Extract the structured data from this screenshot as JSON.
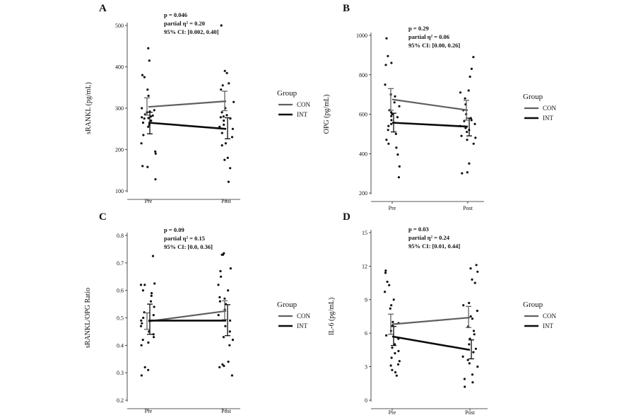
{
  "chart_data": [
    {
      "panel": "A",
      "type": "line",
      "ylabel": "sRANKL (pg/mL)",
      "ylim": [
        100,
        500
      ],
      "yticks": [
        100,
        200,
        300,
        400,
        500
      ],
      "categories": [
        "Pre",
        "Post"
      ],
      "annotation": [
        "p = 0.046",
        "partial η² = 0.20",
        "95% CI: [0.002, 0.40]"
      ],
      "legend": {
        "title": "Group",
        "items": [
          "CON",
          "INT"
        ]
      },
      "series": [
        {
          "name": "CON",
          "color": "#606060",
          "means": [
            303,
            317
          ],
          "ci_low": [
            283,
            294
          ],
          "ci_high": [
            325,
            341
          ]
        },
        {
          "name": "INT",
          "color": "#0a0a0a",
          "means": [
            265,
            250
          ],
          "ci_low": [
            238,
            226
          ],
          "ci_high": [
            290,
            277
          ]
        }
      ],
      "points": {
        "Pre": [
          445,
          415,
          380,
          375,
          345,
          330,
          300,
          295,
          292,
          290,
          285,
          282,
          280,
          278,
          276,
          275,
          270,
          265,
          260,
          255,
          235,
          215,
          195,
          190,
          160,
          158,
          128
        ],
        "Post": [
          500,
          390,
          385,
          360,
          355,
          345,
          315,
          300,
          290,
          283,
          280,
          278,
          275,
          270,
          260,
          255,
          250,
          240,
          230,
          215,
          210,
          180,
          175,
          155,
          122
        ]
      }
    },
    {
      "panel": "B",
      "type": "line",
      "ylabel": "OPG (pg/mL)",
      "ylim": [
        200,
        1000
      ],
      "yticks": [
        200,
        400,
        600,
        800,
        1000
      ],
      "categories": [
        "Pre",
        "Post"
      ],
      "annotation": [
        "p = 0.29",
        "partial η² = 0.06",
        "95% CI: [0.00, 0.26]"
      ],
      "legend": {
        "title": "Group",
        "items": [
          "CON",
          "INT"
        ]
      },
      "series": [
        {
          "name": "CON",
          "color": "#606060",
          "means": [
            675,
            620
          ],
          "ci_low": [
            620,
            570
          ],
          "ci_high": [
            730,
            670
          ]
        },
        {
          "name": "INT",
          "color": "#0a0a0a",
          "means": [
            557,
            537
          ],
          "ci_low": [
            510,
            490
          ],
          "ci_high": [
            605,
            580
          ]
        }
      ],
      "points": {
        "Pre": [
          985,
          895,
          860,
          850,
          750,
          700,
          690,
          660,
          640,
          620,
          610,
          600,
          590,
          585,
          570,
          550,
          540,
          520,
          500,
          470,
          450,
          430,
          395,
          335,
          280
        ],
        "Post": [
          890,
          830,
          790,
          720,
          710,
          680,
          650,
          620,
          600,
          580,
          570,
          565,
          550,
          540,
          530,
          520,
          510,
          490,
          480,
          470,
          450,
          350,
          305,
          300
        ]
      }
    },
    {
      "panel": "C",
      "type": "line",
      "ylabel": "sRANKL/OPG Ratio",
      "ylim": [
        0.2,
        0.8
      ],
      "yticks": [
        0.2,
        0.3,
        0.4,
        0.5,
        0.6,
        0.7,
        0.8
      ],
      "categories": [
        "Pre",
        "Post"
      ],
      "annotation": [
        "p = 0.09",
        "partial η² = 0.15",
        "95% CI: [0.0, 0.36]"
      ],
      "legend": {
        "title": "Group",
        "items": [
          "CON",
          "INT"
        ]
      },
      "series": [
        {
          "name": "CON",
          "color": "#606060",
          "means": [
            0.487,
            0.525
          ],
          "ci_low": [
            0.458,
            0.493
          ],
          "ci_high": [
            0.518,
            0.562
          ]
        },
        {
          "name": "INT",
          "color": "#0a0a0a",
          "means": [
            0.49,
            0.49
          ],
          "ci_low": [
            0.44,
            0.435
          ],
          "ci_high": [
            0.55,
            0.548
          ]
        }
      ],
      "points": {
        "Pre": [
          0.725,
          0.625,
          0.62,
          0.62,
          0.6,
          0.59,
          0.58,
          0.56,
          0.54,
          0.52,
          0.51,
          0.5,
          0.49,
          0.48,
          0.47,
          0.45,
          0.44,
          0.43,
          0.42,
          0.41,
          0.4,
          0.32,
          0.31,
          0.29
        ],
        "Post": [
          0.735,
          0.73,
          0.73,
          0.68,
          0.67,
          0.65,
          0.62,
          0.6,
          0.575,
          0.57,
          0.56,
          0.55,
          0.53,
          0.51,
          0.49,
          0.47,
          0.45,
          0.43,
          0.42,
          0.4,
          0.34,
          0.33,
          0.325,
          0.32,
          0.29
        ]
      }
    },
    {
      "panel": "D",
      "type": "line",
      "ylabel": "IL-6 (pg/mL)",
      "ylim": [
        0,
        15
      ],
      "yticks": [
        0,
        3,
        6,
        9,
        12,
        15
      ],
      "categories": [
        "Pre",
        "Post"
      ],
      "annotation": [
        "p = 0.03",
        "partial η² = 0.24",
        "95% CI: [0.01, 0.44]"
      ],
      "legend": {
        "title": "Group",
        "items": [
          "CON",
          "INT"
        ]
      },
      "series": [
        {
          "name": "CON",
          "color": "#606060",
          "means": [
            6.8,
            7.4
          ],
          "ci_low": [
            5.9,
            6.5
          ],
          "ci_high": [
            7.7,
            8.4
          ]
        },
        {
          "name": "INT",
          "color": "#0a0a0a",
          "means": [
            5.7,
            4.5
          ],
          "ci_low": [
            4.9,
            3.7
          ],
          "ci_high": [
            6.6,
            5.4
          ]
        }
      ],
      "points": {
        "Pre": [
          11.6,
          11.4,
          10.6,
          10.3,
          9.7,
          9.0,
          8.5,
          8.2,
          7.0,
          6.9,
          6.7,
          6.2,
          5.8,
          5.5,
          5.0,
          4.7,
          4.4,
          4.2,
          3.8,
          3.5,
          3.2,
          3.1,
          2.7,
          2.5,
          2.2
        ],
        "Post": [
          12.1,
          11.8,
          11.5,
          10.8,
          10.5,
          8.7,
          8.5,
          8.0,
          7.5,
          7.3,
          6.6,
          6.2,
          5.9,
          5.5,
          5.0,
          4.6,
          4.3,
          3.9,
          3.6,
          3.3,
          3.0,
          2.3,
          1.9,
          1.6,
          1.2
        ]
      }
    }
  ]
}
